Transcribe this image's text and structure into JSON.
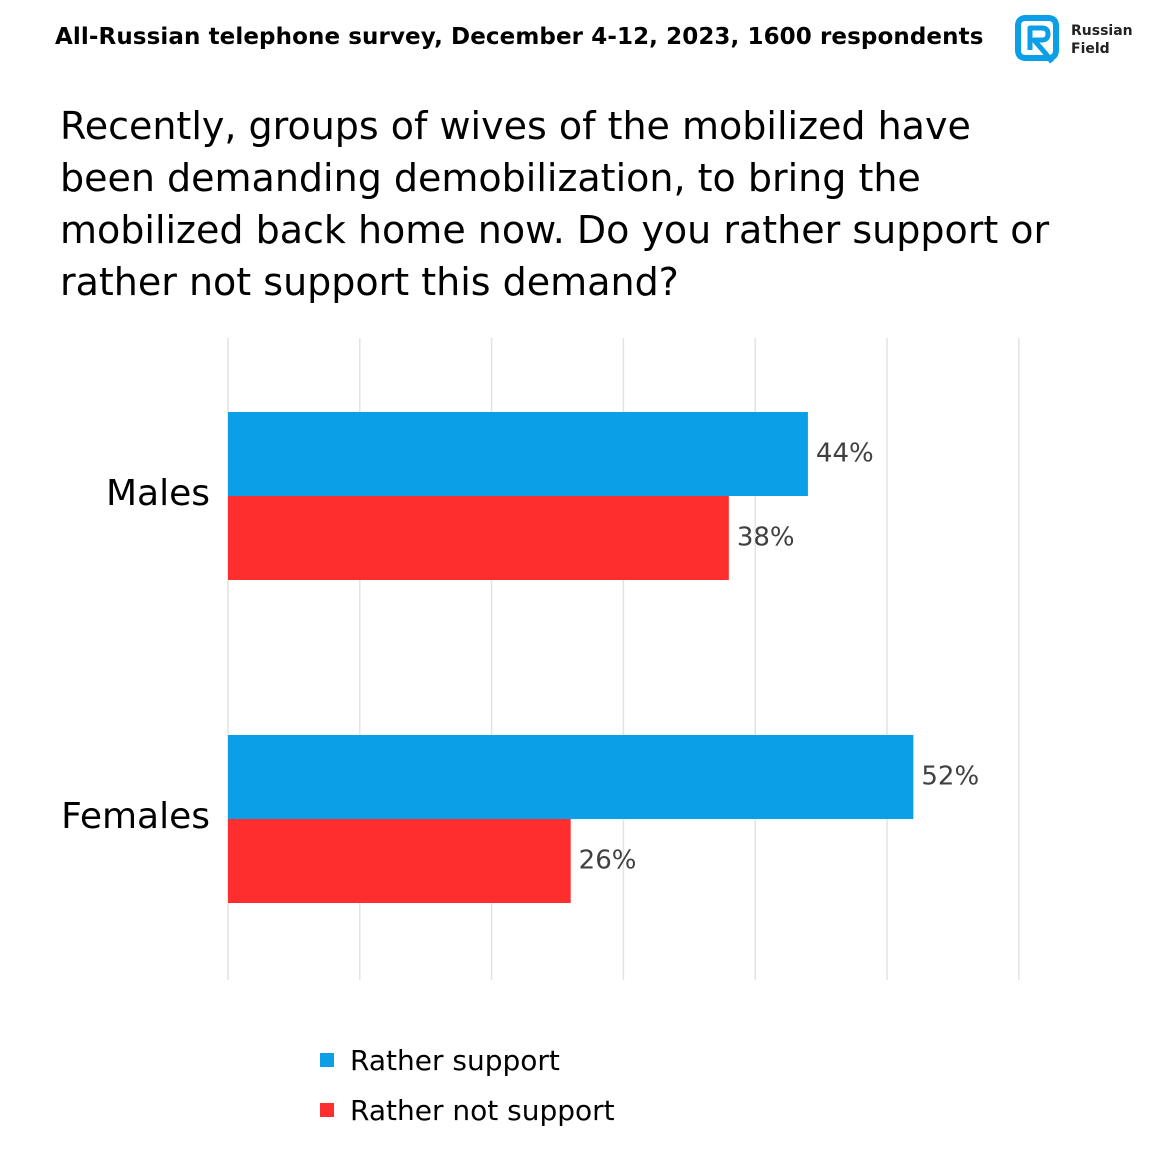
{
  "header": {
    "subtitle": "All-Russian telephone survey, December 4-12, 2023, 1600 respondents",
    "logo_line1": "Russian",
    "logo_line2": "Field",
    "logo_color": "#0a9fe6"
  },
  "question": "Recently, groups of wives of the mobilized have been demanding demobilization, to bring the mobilized back home now. Do you rather support or rather not support this demand?",
  "chart_data": {
    "type": "bar",
    "orientation": "horizontal",
    "categories": [
      "Males",
      "Females"
    ],
    "series": [
      {
        "name": "Rather support",
        "values": [
          44,
          52
        ],
        "labels": [
          "44%",
          "52%"
        ],
        "color": "#0a9fe6"
      },
      {
        "name": "Rather not support",
        "values": [
          38,
          26
        ],
        "labels": [
          "38%",
          "26%"
        ],
        "color": "#ff2e2e"
      }
    ],
    "xlim": [
      0,
      60
    ],
    "grid": true,
    "legend_position": "bottom"
  }
}
